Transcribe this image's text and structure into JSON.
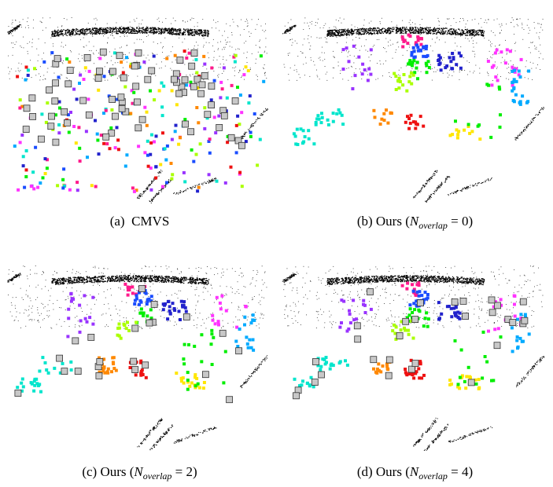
{
  "figure": {
    "panels": [
      {
        "id": "a",
        "caption": {
          "prefix": "(a)",
          "text": "CMVS",
          "math": ""
        }
      },
      {
        "id": "b",
        "caption": {
          "prefix": "(b)",
          "text": "Ours",
          "math_var": "N",
          "math_sub": "overlap",
          "math_val": "= 0"
        }
      },
      {
        "id": "c",
        "caption": {
          "prefix": "(c)",
          "text": "Ours",
          "math_var": "N",
          "math_sub": "overlap",
          "math_val": "= 2"
        }
      },
      {
        "id": "d",
        "caption": {
          "prefix": "(d)",
          "text": "Ours",
          "math_var": "N",
          "math_sub": "overlap",
          "math_val": "= 4"
        }
      }
    ],
    "cluster_colors": [
      "#ff1a8c",
      "#1a4dff",
      "#00ee00",
      "#aaff00",
      "#9933ff",
      "#00e5cc",
      "#ff8800",
      "#ee1111",
      "#ffe600",
      "#ff33ff",
      "#00aaff",
      "#2222cc"
    ],
    "overlap_marker_color": "#c8c8c8"
  }
}
